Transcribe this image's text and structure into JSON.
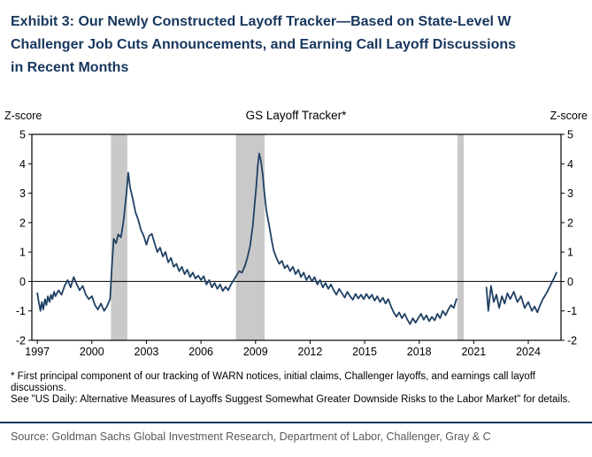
{
  "title": {
    "line1": "Exhibit 3: Our Newly Constructed Layoff Tracker—Based on State-Level W",
    "line2": "Challenger Job Cuts Announcements, and Earning Call Layoff Discussions",
    "line3": "in Recent Months"
  },
  "footnotes": [
    "* First principal component of our tracking of WARN notices, initial claims, Challenger layoffs, and earnings call layoff discussions.",
    "See \"US Daily: Alternative Measures of Layoffs Suggest Somewhat Greater Downside Risks to the Labor Market\" for details."
  ],
  "source": "Source: Goldman Sachs Global Investment Research, Department of Labor, Challenger, Gray & C",
  "colors": {
    "title_navy": "#17365d",
    "rule_navy": "#17365d",
    "line_navy": "#1f4064",
    "recession_band_gray": "#c9c9c9",
    "source_gray": "#595959",
    "axis_black": "#000000"
  },
  "chart_data": {
    "type": "line",
    "title": "GS Layoff Tracker*",
    "ylabel_left": "Z-score",
    "ylabel_right": "Z-score",
    "xlim": [
      1996.7,
      2025.8
    ],
    "ylim": [
      -2,
      5
    ],
    "x_ticks": [
      1997,
      2000,
      2003,
      2006,
      2009,
      2012,
      2015,
      2018,
      2021,
      2024
    ],
    "y_ticks": [
      -2,
      -1,
      0,
      1,
      2,
      3,
      4,
      5
    ],
    "grid": false,
    "zero_line": true,
    "band_color": "#c9c9c9",
    "recession_bands": [
      [
        2001.05,
        2001.95
      ],
      [
        2007.92,
        2009.5
      ],
      [
        2020.1,
        2020.45
      ]
    ],
    "series": [
      {
        "name": "GS Layoff Tracker (z-score)",
        "color": "#1f4064",
        "segments": [
          [
            [
              1997.0,
              -0.4
            ],
            [
              1997.08,
              -0.7
            ],
            [
              1997.17,
              -1.0
            ],
            [
              1997.25,
              -0.7
            ],
            [
              1997.33,
              -0.95
            ],
            [
              1997.42,
              -0.6
            ],
            [
              1997.5,
              -0.8
            ],
            [
              1997.58,
              -0.5
            ],
            [
              1997.67,
              -0.7
            ],
            [
              1997.75,
              -0.45
            ],
            [
              1997.83,
              -0.6
            ],
            [
              1997.92,
              -0.35
            ],
            [
              1998.0,
              -0.5
            ],
            [
              1998.17,
              -0.3
            ],
            [
              1998.33,
              -0.45
            ],
            [
              1998.5,
              -0.15
            ],
            [
              1998.67,
              0.05
            ],
            [
              1998.83,
              -0.2
            ],
            [
              1999.0,
              0.15
            ],
            [
              1999.17,
              -0.1
            ],
            [
              1999.33,
              -0.3
            ],
            [
              1999.5,
              -0.15
            ],
            [
              1999.67,
              -0.45
            ],
            [
              1999.83,
              -0.6
            ],
            [
              2000.0,
              -0.5
            ],
            [
              2000.17,
              -0.8
            ],
            [
              2000.33,
              -0.95
            ],
            [
              2000.5,
              -0.75
            ],
            [
              2000.67,
              -1.0
            ],
            [
              2000.83,
              -0.85
            ],
            [
              2001.0,
              -0.6
            ],
            [
              2001.1,
              0.5
            ],
            [
              2001.2,
              1.45
            ],
            [
              2001.33,
              1.3
            ],
            [
              2001.45,
              1.6
            ],
            [
              2001.6,
              1.5
            ],
            [
              2001.75,
              2.1
            ],
            [
              2001.9,
              3.0
            ],
            [
              2002.0,
              3.7
            ],
            [
              2002.1,
              3.2
            ],
            [
              2002.25,
              2.8
            ],
            [
              2002.4,
              2.35
            ],
            [
              2002.55,
              2.1
            ],
            [
              2002.7,
              1.75
            ],
            [
              2002.85,
              1.55
            ],
            [
              2003.0,
              1.25
            ],
            [
              2003.15,
              1.55
            ],
            [
              2003.3,
              1.62
            ],
            [
              2003.45,
              1.3
            ],
            [
              2003.6,
              1.0
            ],
            [
              2003.75,
              1.15
            ],
            [
              2003.9,
              0.85
            ],
            [
              2004.05,
              1.0
            ],
            [
              2004.2,
              0.65
            ],
            [
              2004.35,
              0.8
            ],
            [
              2004.5,
              0.5
            ],
            [
              2004.65,
              0.6
            ],
            [
              2004.8,
              0.35
            ],
            [
              2004.95,
              0.5
            ],
            [
              2005.1,
              0.25
            ],
            [
              2005.25,
              0.4
            ],
            [
              2005.4,
              0.15
            ],
            [
              2005.55,
              0.3
            ],
            [
              2005.7,
              0.1
            ],
            [
              2005.85,
              0.2
            ],
            [
              2006.0,
              0.05
            ],
            [
              2006.15,
              0.18
            ],
            [
              2006.3,
              -0.1
            ],
            [
              2006.45,
              0.05
            ],
            [
              2006.6,
              -0.2
            ],
            [
              2006.75,
              -0.05
            ],
            [
              2006.9,
              -0.25
            ],
            [
              2007.05,
              -0.1
            ],
            [
              2007.2,
              -0.32
            ],
            [
              2007.35,
              -0.18
            ],
            [
              2007.5,
              -0.3
            ],
            [
              2007.65,
              -0.1
            ],
            [
              2007.8,
              0.05
            ],
            [
              2007.95,
              0.2
            ],
            [
              2008.1,
              0.35
            ],
            [
              2008.25,
              0.3
            ],
            [
              2008.4,
              0.5
            ],
            [
              2008.55,
              0.8
            ],
            [
              2008.7,
              1.2
            ],
            [
              2008.85,
              1.9
            ],
            [
              2008.95,
              2.6
            ],
            [
              2009.05,
              3.3
            ],
            [
              2009.12,
              3.9
            ],
            [
              2009.2,
              4.35
            ],
            [
              2009.3,
              4.1
            ],
            [
              2009.4,
              3.6
            ],
            [
              2009.5,
              2.95
            ],
            [
              2009.6,
              2.4
            ],
            [
              2009.75,
              1.9
            ],
            [
              2009.9,
              1.35
            ],
            [
              2010.0,
              1.05
            ],
            [
              2010.15,
              0.8
            ],
            [
              2010.3,
              0.6
            ],
            [
              2010.45,
              0.7
            ],
            [
              2010.6,
              0.45
            ],
            [
              2010.75,
              0.55
            ],
            [
              2010.9,
              0.35
            ],
            [
              2011.05,
              0.5
            ],
            [
              2011.2,
              0.25
            ],
            [
              2011.35,
              0.4
            ],
            [
              2011.5,
              0.15
            ],
            [
              2011.65,
              0.3
            ],
            [
              2011.8,
              0.05
            ],
            [
              2011.95,
              0.2
            ],
            [
              2012.1,
              0.0
            ],
            [
              2012.25,
              0.15
            ],
            [
              2012.4,
              -0.1
            ],
            [
              2012.55,
              0.05
            ],
            [
              2012.7,
              -0.2
            ],
            [
              2012.85,
              -0.05
            ],
            [
              2013.0,
              -0.25
            ],
            [
              2013.15,
              -0.1
            ],
            [
              2013.3,
              -0.3
            ],
            [
              2013.45,
              -0.45
            ],
            [
              2013.6,
              -0.25
            ],
            [
              2013.75,
              -0.4
            ],
            [
              2013.9,
              -0.55
            ],
            [
              2014.05,
              -0.35
            ],
            [
              2014.2,
              -0.5
            ],
            [
              2014.35,
              -0.62
            ],
            [
              2014.5,
              -0.42
            ],
            [
              2014.65,
              -0.58
            ],
            [
              2014.8,
              -0.45
            ],
            [
              2014.95,
              -0.6
            ],
            [
              2015.1,
              -0.42
            ],
            [
              2015.25,
              -0.58
            ],
            [
              2015.4,
              -0.45
            ],
            [
              2015.55,
              -0.65
            ],
            [
              2015.7,
              -0.5
            ],
            [
              2015.85,
              -0.7
            ],
            [
              2016.0,
              -0.55
            ],
            [
              2016.15,
              -0.75
            ],
            [
              2016.3,
              -0.6
            ],
            [
              2016.45,
              -0.85
            ],
            [
              2016.6,
              -1.05
            ],
            [
              2016.75,
              -1.2
            ],
            [
              2016.9,
              -1.05
            ],
            [
              2017.05,
              -1.25
            ],
            [
              2017.2,
              -1.1
            ],
            [
              2017.35,
              -1.3
            ],
            [
              2017.5,
              -1.45
            ],
            [
              2017.65,
              -1.25
            ],
            [
              2017.8,
              -1.4
            ],
            [
              2017.95,
              -1.25
            ],
            [
              2018.1,
              -1.1
            ],
            [
              2018.25,
              -1.3
            ],
            [
              2018.4,
              -1.15
            ],
            [
              2018.55,
              -1.35
            ],
            [
              2018.7,
              -1.2
            ],
            [
              2018.85,
              -1.32
            ],
            [
              2019.0,
              -1.1
            ],
            [
              2019.15,
              -1.25
            ],
            [
              2019.3,
              -1.0
            ],
            [
              2019.45,
              -1.15
            ],
            [
              2019.6,
              -0.95
            ],
            [
              2019.75,
              -0.8
            ],
            [
              2019.9,
              -0.9
            ],
            [
              2020.05,
              -0.6
            ]
          ],
          [
            [
              2021.7,
              -0.2
            ],
            [
              2021.8,
              -1.0
            ],
            [
              2021.95,
              -0.15
            ],
            [
              2022.1,
              -0.7
            ],
            [
              2022.25,
              -0.45
            ],
            [
              2022.4,
              -0.9
            ],
            [
              2022.55,
              -0.5
            ],
            [
              2022.7,
              -0.75
            ],
            [
              2022.85,
              -0.4
            ],
            [
              2023.0,
              -0.6
            ],
            [
              2023.2,
              -0.35
            ],
            [
              2023.4,
              -0.7
            ],
            [
              2023.6,
              -0.5
            ],
            [
              2023.8,
              -0.9
            ],
            [
              2024.0,
              -0.7
            ],
            [
              2024.2,
              -1.0
            ],
            [
              2024.35,
              -0.85
            ],
            [
              2024.5,
              -1.05
            ],
            [
              2024.65,
              -0.8
            ],
            [
              2024.8,
              -0.6
            ],
            [
              2025.0,
              -0.4
            ],
            [
              2025.2,
              -0.15
            ],
            [
              2025.4,
              0.1
            ],
            [
              2025.55,
              0.3
            ]
          ]
        ]
      }
    ]
  }
}
